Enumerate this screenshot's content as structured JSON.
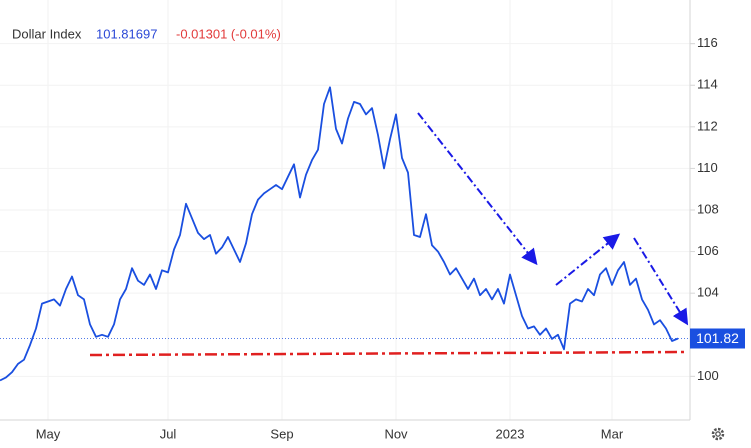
{
  "chart_data": {
    "type": "line",
    "title": "Dollar Index",
    "price": "101.81697",
    "change": "-0.01301 (-0.01%)",
    "categories": [
      null,
      null,
      null,
      null,
      null,
      null,
      null,
      null,
      "May",
      null,
      null,
      null,
      null,
      null,
      null,
      null,
      null,
      null,
      null,
      null,
      null,
      null,
      null,
      null,
      null,
      null,
      null,
      null,
      "Jul",
      null,
      null,
      null,
      null,
      null,
      null,
      null,
      null,
      null,
      null,
      null,
      null,
      null,
      null,
      null,
      null,
      null,
      null,
      "Sep",
      null,
      null,
      null,
      null,
      null,
      null,
      null,
      null,
      null,
      null,
      null,
      null,
      null,
      null,
      null,
      null,
      null,
      null,
      "Nov",
      null,
      null,
      null,
      null,
      null,
      null,
      null,
      null,
      null,
      null,
      null,
      null,
      null,
      null,
      null,
      null,
      null,
      null,
      "2023",
      null,
      null,
      null,
      null,
      null,
      null,
      null,
      null,
      null,
      null,
      null,
      null,
      null,
      null,
      null,
      null,
      "Mar",
      null,
      null,
      null,
      null,
      null,
      null,
      null,
      null,
      null,
      null,
      null
    ],
    "series": [
      {
        "name": "Dollar Index",
        "color": "#1a4fe0",
        "values": [
          99.8,
          99.95,
          100.2,
          100.6,
          100.8,
          101.5,
          102.3,
          103.5,
          103.6,
          103.7,
          103.4,
          104.2,
          104.8,
          103.9,
          103.7,
          102.5,
          101.9,
          102.0,
          101.9,
          102.5,
          103.7,
          104.2,
          105.2,
          104.6,
          104.4,
          104.9,
          104.2,
          105.1,
          105.0,
          106.1,
          106.8,
          108.3,
          107.6,
          106.9,
          106.6,
          106.8,
          105.9,
          106.2,
          106.7,
          106.1,
          105.5,
          106.4,
          107.8,
          108.5,
          108.8,
          109.0,
          109.2,
          109.0,
          109.6,
          110.2,
          108.6,
          109.7,
          110.4,
          110.9,
          113.1,
          113.9,
          111.9,
          111.2,
          112.4,
          113.2,
          113.1,
          112.6,
          112.9,
          111.6,
          110.0,
          111.4,
          112.6,
          110.5,
          109.8,
          106.8,
          106.7,
          107.8,
          106.3,
          106.0,
          105.5,
          104.9,
          105.2,
          104.7,
          104.2,
          104.7,
          103.9,
          104.2,
          103.7,
          104.2,
          103.5,
          104.9,
          103.9,
          102.9,
          102.3,
          102.4,
          102.0,
          102.3,
          101.8,
          102.0,
          101.3,
          103.5,
          103.7,
          103.6,
          104.2,
          103.9,
          104.9,
          105.2,
          104.4,
          105.1,
          105.5,
          104.4,
          104.7,
          103.7,
          103.2,
          102.5,
          102.7,
          102.3,
          101.7,
          101.82
        ],
        "value_labels": [
          null,
          null,
          null,
          null,
          null,
          null,
          null,
          null,
          null,
          null,
          null,
          null,
          null,
          null,
          null,
          null,
          null,
          null,
          null,
          null,
          null,
          null,
          null,
          null,
          null,
          null,
          null,
          null,
          null,
          null,
          null,
          null,
          null,
          null,
          null,
          null,
          null,
          null,
          null,
          null,
          null,
          null,
          null,
          null,
          null,
          null,
          null,
          null,
          null,
          null,
          null,
          null,
          null,
          null,
          null,
          null,
          null,
          null,
          null,
          null,
          null,
          null,
          null,
          null,
          null,
          null,
          null,
          null,
          null,
          null,
          null,
          null,
          null,
          null,
          null,
          null,
          null,
          null,
          null,
          null,
          null,
          null,
          null,
          null,
          null,
          null,
          null,
          null,
          null,
          null,
          null,
          null,
          null,
          null,
          null,
          null,
          null,
          null,
          null,
          null,
          null,
          null,
          null,
          null,
          null,
          null,
          null,
          null,
          null,
          null,
          null,
          null,
          null,
          "101.82"
        ]
      }
    ],
    "ylim": [
      97.9,
      118.1
    ],
    "yticks": [
      100,
      104,
      106,
      108,
      110,
      112,
      114,
      116
    ],
    "grid": true
  }
}
